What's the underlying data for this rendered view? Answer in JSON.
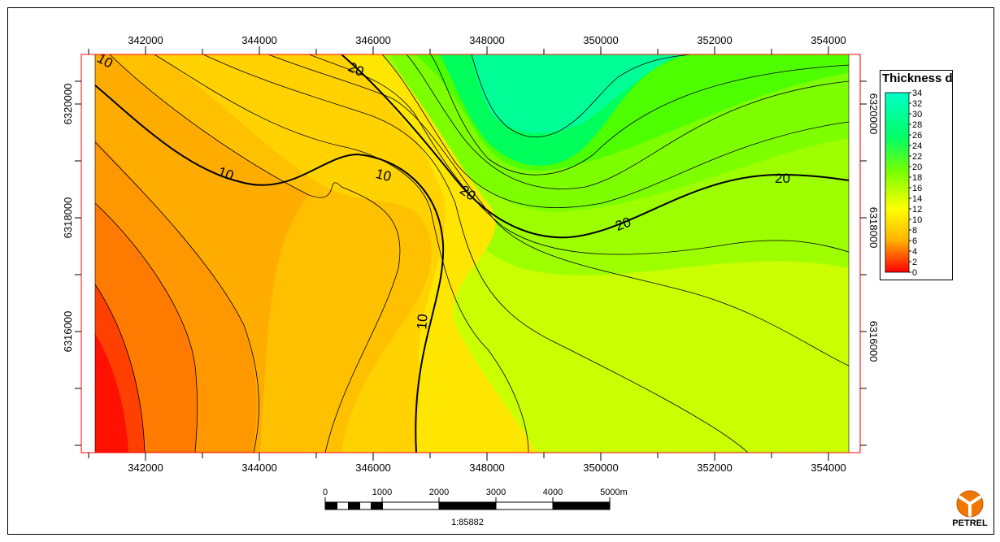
{
  "map": {
    "x_ticks": [
      "342000",
      "344000",
      "346000",
      "348000",
      "350000",
      "352000",
      "354000"
    ],
    "y_ticks": [
      "6320000",
      "6318000",
      "6316000"
    ],
    "contour_labels": [
      "10",
      "10",
      "10",
      "20",
      "20",
      "20",
      "20",
      "10"
    ]
  },
  "legend": {
    "title": "Thickness d",
    "values": [
      "34",
      "32",
      "30",
      "28",
      "26",
      "24",
      "22",
      "20",
      "18",
      "16",
      "14",
      "12",
      "10",
      "8",
      "6",
      "4",
      "2",
      "0"
    ],
    "colors": [
      "#00ffc8",
      "#00ff64",
      "#80ff00",
      "#ffff00",
      "#ffb400",
      "#ff0000"
    ]
  },
  "scale_bar": {
    "labels": [
      "0",
      "1000",
      "2000",
      "3000",
      "4000",
      "5000m"
    ],
    "ratio": "1:85882"
  },
  "logo": {
    "text": "PETREL",
    "icon": "petrel-logo-icon"
  }
}
